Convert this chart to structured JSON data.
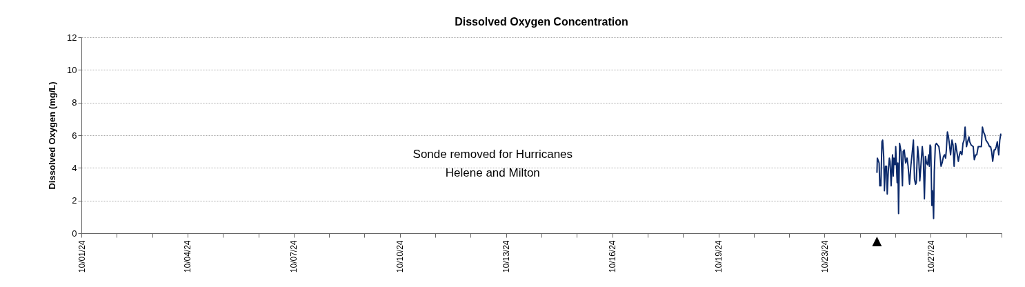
{
  "chart_data": {
    "type": "line",
    "title": "Dissolved Oxygen Concentration",
    "ylabel": "Dissolved Oxygen (mg/L)",
    "annotations": [
      "Sonde removed for Hurricanes Helene and Milton",
      "▲"
    ],
    "xlim": [
      "--10-01",
      "--10-27"
    ],
    "ylim": [
      0,
      12
    ],
    "yticks": [
      0,
      2,
      4,
      6,
      8,
      10,
      12
    ],
    "xticks": [
      {
        "value": "--10-01",
        "label": "10/01/24"
      },
      {
        "value": "--10-02",
        "label": null
      },
      {
        "value": "--10-03",
        "label": null
      },
      {
        "value": "--10-04",
        "label": "10/04/24"
      },
      {
        "value": "--10-05",
        "label": null
      },
      {
        "value": "--10-06",
        "label": null
      },
      {
        "value": "--10-07",
        "label": "10/07/24"
      },
      {
        "value": "--10-08",
        "label": null
      },
      {
        "value": "--10-09",
        "label": null
      },
      {
        "value": "--10-10",
        "label": "10/10/24"
      },
      {
        "value": "--10-11",
        "label": null
      },
      {
        "value": "--10-12",
        "label": null
      },
      {
        "value": "--10-13",
        "label": "10/13/24"
      },
      {
        "value": "--10-14",
        "label": null
      },
      {
        "value": "--10-15",
        "label": null
      },
      {
        "value": "--10-16",
        "label": "10/16/24"
      },
      {
        "value": "--10-17",
        "label": null
      },
      {
        "value": "--10-18",
        "label": null
      },
      {
        "value": "--10-19",
        "label": "10/19/24"
      },
      {
        "value": "--10-20",
        "label": null
      },
      {
        "value": "--10-21",
        "label": null
      },
      {
        "value": "--10-22",
        "label": "10/23/24"
      },
      {
        "value": "--10-23",
        "label": null
      },
      {
        "value": "--10-24",
        "label": null
      },
      {
        "value": "--10-25",
        "label": "10/27/24"
      },
      {
        "value": "--10-26",
        "label": null
      },
      {
        "value": "--10-27",
        "label": null
      }
    ],
    "grid": "y",
    "x": [
      "--10-23T11:31",
      "--10-23T11:46",
      "--10-23T12:58",
      "--10-23T13:26",
      "--10-23T14:10",
      "--10-23T14:53",
      "--10-23T15:22",
      "--10-23T16:05",
      "--10-23T16:34",
      "--10-23T17:17",
      "--10-23T18:00",
      "--10-23T18:29",
      "--10-23T19:12",
      "--10-23T19:55",
      "--10-23T20:24",
      "--10-23T21:07",
      "--10-23T22:05",
      "--10-23T22:34",
      "--10-23T23:02",
      "--10-23T23:46",
      "--10-24T00:14",
      "--10-24T01:12",
      "--10-24T01:41",
      "--10-24T02:10",
      "--10-24T02:53",
      "--10-24T03:50",
      "--10-24T04:48",
      "--10-24T05:17",
      "--10-24T06:00",
      "--10-24T06:58",
      "--10-24T07:55",
      "--10-24T08:38",
      "--10-24T09:36",
      "--10-24T10:34",
      "--10-24T11:17",
      "--10-24T12:14",
      "--10-24T12:58",
      "--10-24T13:41",
      "--10-24T14:10",
      "--10-24T15:07",
      "--10-24T15:50",
      "--10-24T16:34",
      "--10-24T17:17",
      "--10-24T18:14",
      "--10-24T18:58",
      "--10-24T19:41",
      "--10-24T20:24",
      "--10-24T21:07",
      "--10-24T21:50",
      "--10-24T22:34",
      "--10-24T23:02",
      "--10-24T23:31",
      "--10-25T00:00",
      "--10-25T00:43",
      "--10-25T01:12",
      "--10-25T01:55",
      "--10-25T02:24",
      "--10-25T03:07",
      "--10-25T03:50",
      "--10-25T05:31",
      "--10-25T06:14",
      "--10-25T06:58",
      "--10-25T07:41",
      "--10-25T08:38",
      "--10-25T09:22",
      "--10-25T10:05",
      "--10-25T10:34",
      "--10-25T11:17",
      "--10-25T12:00",
      "--10-25T12:43",
      "--10-25T13:26",
      "--10-25T14:24",
      "--10-25T15:07",
      "--10-25T15:50",
      "--10-25T16:48",
      "--10-25T17:31",
      "--10-25T18:43",
      "--10-25T19:26",
      "--10-25T20:10",
      "--10-25T21:07",
      "--10-25T21:50",
      "--10-25T22:34",
      "--10-25T23:17",
      "--10-26T00:14",
      "--10-26T00:58",
      "--10-26T01:55",
      "--10-26T02:24",
      "--10-26T03:22",
      "--10-26T04:48",
      "--10-26T05:31",
      "--10-26T06:29",
      "--10-26T07:12",
      "--10-26T08:10",
      "--10-26T09:07",
      "--10-26T10:19",
      "--10-26T11:02",
      "--10-26T11:46",
      "--10-26T12:43",
      "--10-26T13:26",
      "--10-26T14:10",
      "--10-26T14:53",
      "--10-26T15:50",
      "--10-26T16:34",
      "--10-26T17:17",
      "--10-26T18:00",
      "--10-26T18:58",
      "--10-26T19:41",
      "--10-26T20:24",
      "--10-26T21:07",
      "--10-26T22:05",
      "--10-26T22:48",
      "--10-26T23:31"
    ],
    "series": [
      {
        "color": "#0c2a6b",
        "values": [
          3.7,
          4.6,
          4.3,
          2.9,
          2.9,
          5.6,
          5.7,
          4.7,
          2.6,
          4.1,
          4.1,
          2.4,
          3.8,
          4.6,
          4.4,
          2.9,
          4.8,
          3.5,
          4.6,
          4.2,
          5.3,
          3.1,
          4.3,
          1.2,
          5.5,
          5.0,
          2.9,
          5.0,
          5.1,
          4.3,
          4.6,
          4.1,
          3.0,
          4.2,
          4.8,
          5.7,
          3.3,
          3.0,
          3.1,
          5.3,
          4.6,
          3.2,
          4.1,
          5.3,
          4.6,
          2.1,
          4.7,
          4.3,
          4.2,
          4.8,
          4.1,
          5.4,
          5.3,
          1.7,
          2.6,
          0.9,
          3.8,
          5.4,
          5.5,
          5.3,
          4.8,
          4.1,
          4.3,
          4.7,
          4.8,
          4.6,
          5.1,
          6.2,
          5.9,
          5.4,
          4.8,
          5.7,
          5.4,
          4.1,
          5.5,
          5.1,
          4.4,
          4.8,
          5.0,
          4.8,
          5.5,
          5.7,
          6.5,
          5.3,
          5.6,
          5.9,
          5.6,
          5.4,
          5.3,
          4.5,
          4.8,
          4.8,
          5.3,
          5.3,
          5.3,
          6.5,
          6.2,
          6.0,
          5.7,
          5.6,
          5.5,
          5.3,
          5.3,
          5.0,
          4.4,
          5.1,
          5.1,
          5.3,
          5.6,
          4.8,
          5.7,
          6.1
        ]
      }
    ]
  }
}
